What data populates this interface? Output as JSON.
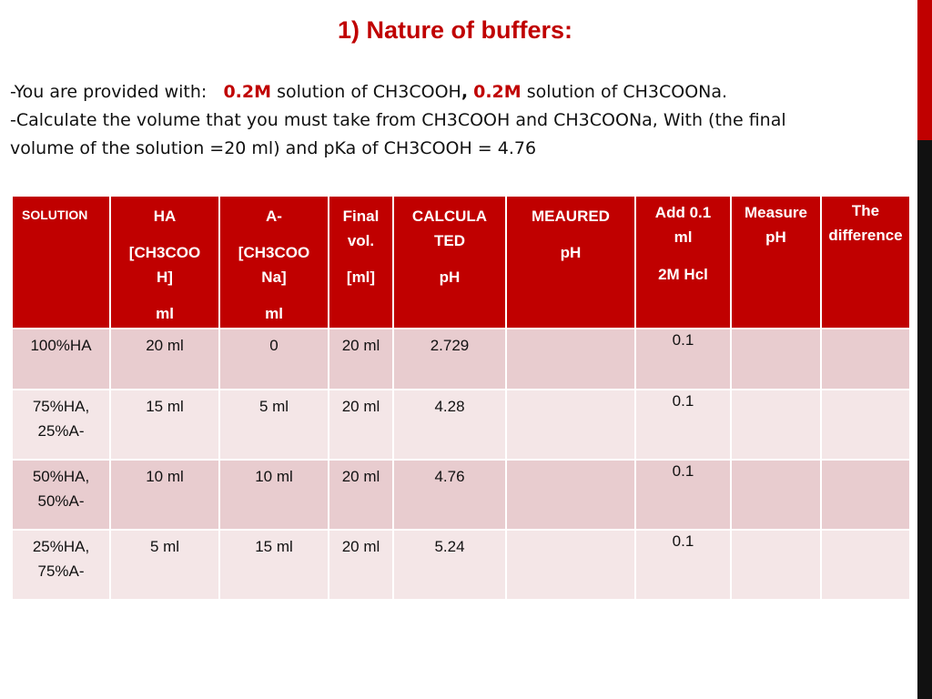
{
  "title": "1) Nature of buffers:",
  "intro": {
    "l1_a": "-You are provided with:",
    "l1_b": "0.2M",
    "l1_c": "solution of  CH3COOH",
    "l1_d": ",",
    "l1_e": "0.2M",
    "l1_f": "solution of CH3COONa.",
    "l2": "-Calculate the volume that you must take from CH3COOH and CH3COONa, With  (the final",
    "l3": "volume of the solution =20 ml) and pKa of CH3COOH = 4.76"
  },
  "table": {
    "headers": {
      "solution": "SOLUTION",
      "ha": [
        "HA",
        "[CH3COO",
        "H]",
        "ml"
      ],
      "a": [
        "A-",
        "[CH3COO",
        "Na]",
        "ml"
      ],
      "final": [
        "Final",
        "vol.",
        "[ml]"
      ],
      "calc": [
        "CALCULA",
        "TED",
        "pH"
      ],
      "meas": [
        "MEAURED",
        "pH"
      ],
      "add": [
        "Add 0.1",
        "ml",
        "2M Hcl"
      ],
      "mph": [
        "Measure",
        "pH"
      ],
      "diff": [
        "The",
        "difference"
      ]
    },
    "rows": [
      {
        "solution": [
          "100%HA"
        ],
        "ha": "20 ml",
        "a": "0",
        "final": "20 ml",
        "calc": "2.729",
        "meas": "",
        "add": "0.1",
        "mph": "",
        "diff": ""
      },
      {
        "solution": [
          "75%HA,",
          "25%A-"
        ],
        "ha": "15 ml",
        "a": "5 ml",
        "final": "20 ml",
        "calc": "4.28",
        "meas": "",
        "add": "0.1",
        "mph": "",
        "diff": ""
      },
      {
        "solution": [
          "50%HA,",
          "50%A-"
        ],
        "ha": "10 ml",
        "a": "10 ml",
        "final": "20 ml",
        "calc": "4.76",
        "meas": "",
        "add": "0.1",
        "mph": "",
        "diff": ""
      },
      {
        "solution": [
          "25%HA,",
          "75%A-"
        ],
        "ha": "5 ml",
        "a": "15 ml",
        "final": "20 ml",
        "calc": "5.24",
        "meas": "",
        "add": "0.1",
        "mph": "",
        "diff": ""
      }
    ]
  },
  "colors": {
    "accent": "#c00000",
    "row_dark": "#e8cccf",
    "row_light": "#f4e6e7"
  }
}
